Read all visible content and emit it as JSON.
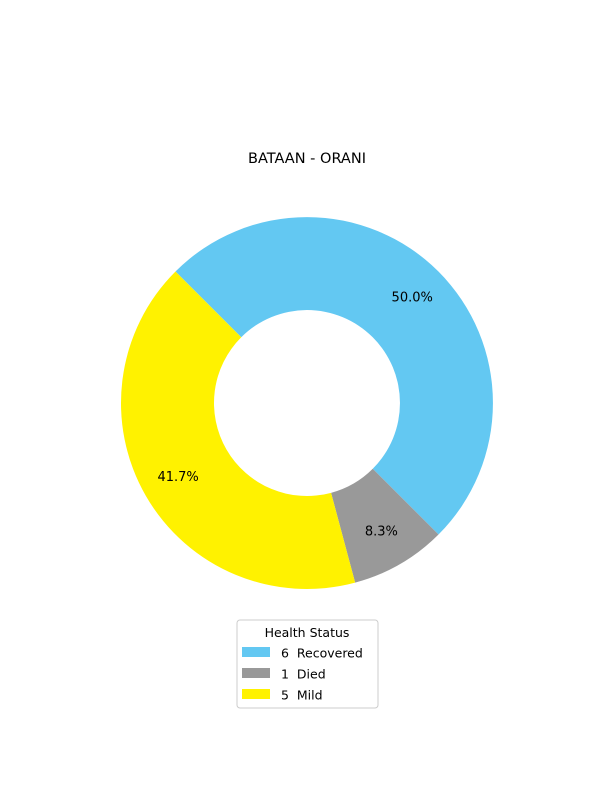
{
  "chart_data": {
    "type": "pie",
    "subtype": "donut",
    "title": "BATAAN - ORANI",
    "legend_title": "Health Status",
    "legend_position": "bottom-center",
    "series": [
      {
        "name": "Health Status",
        "slices": [
          {
            "category": "Recovered",
            "value": 6,
            "percent_label": "50.0%",
            "legend_label": "6  Recovered",
            "color": "#63c8f2"
          },
          {
            "category": "Died",
            "value": 1,
            "percent_label": "8.3%",
            "legend_label": "1  Died",
            "color": "#999999"
          },
          {
            "category": "Mild",
            "value": 5,
            "percent_label": "41.7%",
            "legend_label": "5  Mild",
            "color": "#fff200"
          }
        ]
      }
    ],
    "start_angle_deg": 135,
    "direction": "clockwise"
  }
}
